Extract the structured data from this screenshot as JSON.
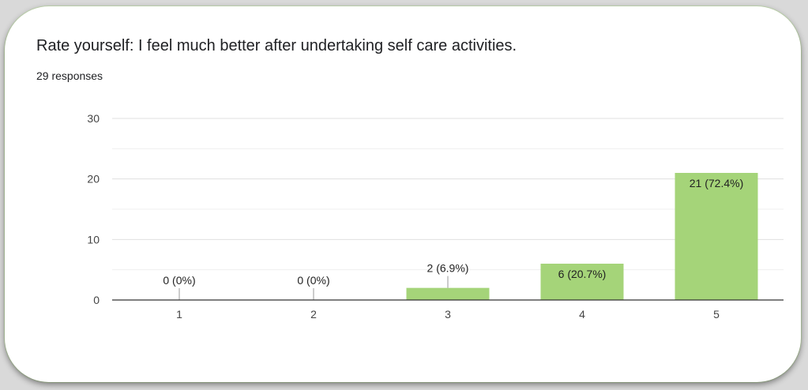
{
  "title": "Rate yourself: I feel much better after undertaking self care activities.",
  "subtitle": "29 responses",
  "colors": {
    "bar": "#a5d479",
    "grid": "#e6e6e6",
    "axis": "#333333"
  },
  "chart_data": {
    "type": "bar",
    "categories": [
      "1",
      "2",
      "3",
      "4",
      "5"
    ],
    "values": [
      0,
      0,
      2,
      6,
      21
    ],
    "data_labels": [
      "0 (0%)",
      "0 (0%)",
      "2 (6.9%)",
      "6 (20.7%)",
      "21 (72.4%)"
    ],
    "title": "Rate yourself: I feel much better after undertaking self care activities.",
    "xlabel": "",
    "ylabel": "",
    "ylim": [
      0,
      30
    ],
    "yticks": [
      0,
      10,
      20,
      30
    ],
    "grid": true,
    "legend": "none"
  }
}
